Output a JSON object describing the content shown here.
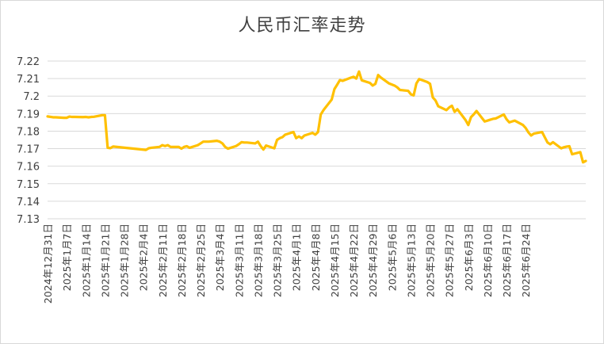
{
  "chart_data": {
    "type": "line",
    "title": "人民币汇率走势",
    "ylim": [
      7.13,
      7.22
    ],
    "yticks": [
      "7.22",
      "7.21",
      "7.2",
      "7.19",
      "7.18",
      "7.17",
      "7.16",
      "7.15",
      "7.14",
      "7.13"
    ],
    "ytick_values": [
      7.22,
      7.21,
      7.2,
      7.19,
      7.18,
      7.17,
      7.16,
      7.15,
      7.14,
      7.13
    ],
    "xticks": [
      "2024年12月31日",
      "2025年1月7日",
      "2025年1月14日",
      "2025年1月21日",
      "2025年1月28日",
      "2025年2月4日",
      "2025年2月11日",
      "2025年2月18日",
      "2025年2月25日",
      "2025年3月4日",
      "2025年3月11日",
      "2025年3月18日",
      "2025年3月25日",
      "2025年4月1日",
      "2025年4月8日",
      "2025年4月15日",
      "2025年4月22日",
      "2025年4月29日",
      "2025年5月6日",
      "2025年5月13日",
      "2025年5月20日",
      "2025年5月27日",
      "2025年6月3日",
      "2025年6月10日",
      "2025年6月17日",
      "2025年6月24日"
    ],
    "grid": true,
    "legend": "none",
    "line_color": "#ffc000",
    "series": [
      {
        "points": [
          [
            "2024-12-31",
            7.1884
          ],
          [
            "2025-01-02",
            7.1879
          ],
          [
            "2025-01-03",
            7.1879
          ],
          [
            "2025-01-06",
            7.1876
          ],
          [
            "2025-01-07",
            7.1876
          ],
          [
            "2025-01-08",
            7.1883
          ],
          [
            "2025-01-09",
            7.1881
          ],
          [
            "2025-01-10",
            7.1881
          ],
          [
            "2025-01-13",
            7.188
          ],
          [
            "2025-01-14",
            7.1881
          ],
          [
            "2025-01-15",
            7.1879
          ],
          [
            "2025-01-16",
            7.1881
          ],
          [
            "2025-01-17",
            7.1882
          ],
          [
            "2025-01-20",
            7.1891
          ],
          [
            "2025-01-21",
            7.1891
          ],
          [
            "2025-01-22",
            7.1705
          ],
          [
            "2025-01-23",
            7.1703
          ],
          [
            "2025-01-24",
            7.1712
          ],
          [
            "2025-02-05",
            7.1693
          ],
          [
            "2025-02-06",
            7.1702
          ],
          [
            "2025-02-07",
            7.1705
          ],
          [
            "2025-02-10",
            7.171
          ],
          [
            "2025-02-11",
            7.172
          ],
          [
            "2025-02-12",
            7.1715
          ],
          [
            "2025-02-13",
            7.172
          ],
          [
            "2025-02-14",
            7.171
          ],
          [
            "2025-02-17",
            7.171
          ],
          [
            "2025-02-18",
            7.17
          ],
          [
            "2025-02-19",
            7.171
          ],
          [
            "2025-02-20",
            7.1714
          ],
          [
            "2025-02-21",
            7.1705
          ],
          [
            "2025-02-24",
            7.172
          ],
          [
            "2025-02-25",
            7.173
          ],
          [
            "2025-02-26",
            7.174
          ],
          [
            "2025-02-27",
            7.174
          ],
          [
            "2025-02-28",
            7.174
          ],
          [
            "2025-03-03",
            7.1745
          ],
          [
            "2025-03-04",
            7.174
          ],
          [
            "2025-03-05",
            7.173
          ],
          [
            "2025-03-06",
            7.171
          ],
          [
            "2025-03-07",
            7.17
          ],
          [
            "2025-03-10",
            7.1715
          ],
          [
            "2025-03-11",
            7.1725
          ],
          [
            "2025-03-12",
            7.1737
          ],
          [
            "2025-03-13",
            7.1735
          ],
          [
            "2025-03-14",
            7.1735
          ],
          [
            "2025-03-17",
            7.173
          ],
          [
            "2025-03-18",
            7.174
          ],
          [
            "2025-03-19",
            7.1715
          ],
          [
            "2025-03-20",
            7.1695
          ],
          [
            "2025-03-21",
            7.1718
          ],
          [
            "2025-03-24",
            7.1702
          ],
          [
            "2025-03-25",
            7.175
          ],
          [
            "2025-03-26",
            7.176
          ],
          [
            "2025-03-27",
            7.1766
          ],
          [
            "2025-03-28",
            7.178
          ],
          [
            "2025-03-31",
            7.1795
          ],
          [
            "2025-04-01",
            7.176
          ],
          [
            "2025-04-02",
            7.177
          ],
          [
            "2025-04-03",
            7.176
          ],
          [
            "2025-04-04",
            7.1775
          ],
          [
            "2025-04-07",
            7.179
          ],
          [
            "2025-04-08",
            7.178
          ],
          [
            "2025-04-09",
            7.1795
          ],
          [
            "2025-04-10",
            7.1895
          ],
          [
            "2025-04-11",
            7.192
          ],
          [
            "2025-04-14",
            7.198
          ],
          [
            "2025-04-15",
            7.204
          ],
          [
            "2025-04-16",
            7.2065
          ],
          [
            "2025-04-17",
            7.2091
          ],
          [
            "2025-04-18",
            7.2087
          ],
          [
            "2025-04-21",
            7.2105
          ],
          [
            "2025-04-22",
            7.211
          ],
          [
            "2025-04-23",
            7.21
          ],
          [
            "2025-04-24",
            7.214
          ],
          [
            "2025-04-25",
            7.209
          ],
          [
            "2025-04-28",
            7.2075
          ],
          [
            "2025-04-29",
            7.206
          ],
          [
            "2025-04-30",
            7.207
          ],
          [
            "2025-05-01",
            7.212
          ],
          [
            "2025-05-02",
            7.2106
          ],
          [
            "2025-05-05",
            7.2072
          ],
          [
            "2025-05-06",
            7.2066
          ],
          [
            "2025-05-07",
            7.206
          ],
          [
            "2025-05-08",
            7.205
          ],
          [
            "2025-05-09",
            7.2035
          ],
          [
            "2025-05-12",
            7.203
          ],
          [
            "2025-05-13",
            7.201
          ],
          [
            "2025-05-14",
            7.2004
          ],
          [
            "2025-05-15",
            7.2072
          ],
          [
            "2025-05-16",
            7.2097
          ],
          [
            "2025-05-19",
            7.208
          ],
          [
            "2025-05-20",
            7.207
          ],
          [
            "2025-05-21",
            7.1993
          ],
          [
            "2025-05-22",
            7.1975
          ],
          [
            "2025-05-23",
            7.1942
          ],
          [
            "2025-05-26",
            7.192
          ],
          [
            "2025-05-27",
            7.1935
          ],
          [
            "2025-05-28",
            7.1945
          ],
          [
            "2025-05-29",
            7.191
          ],
          [
            "2025-05-30",
            7.1925
          ],
          [
            "2025-06-02",
            7.1863
          ],
          [
            "2025-06-03",
            7.1835
          ],
          [
            "2025-06-04",
            7.188
          ],
          [
            "2025-06-05",
            7.1896
          ],
          [
            "2025-06-06",
            7.1915
          ],
          [
            "2025-06-09",
            7.1855
          ],
          [
            "2025-06-10",
            7.186
          ],
          [
            "2025-06-11",
            7.1865
          ],
          [
            "2025-06-12",
            7.187
          ],
          [
            "2025-06-13",
            7.1872
          ],
          [
            "2025-06-16",
            7.1895
          ],
          [
            "2025-06-17",
            7.1868
          ],
          [
            "2025-06-18",
            7.185
          ],
          [
            "2025-06-19",
            7.1855
          ],
          [
            "2025-06-20",
            7.186
          ],
          [
            "2025-06-23",
            7.1835
          ],
          [
            "2025-06-24",
            7.1818
          ],
          [
            "2025-06-25",
            7.1793
          ],
          [
            "2025-06-26",
            7.1775
          ],
          [
            "2025-06-27",
            7.1786
          ],
          [
            "2025-06-30",
            7.1795
          ],
          [
            "2025-07-01",
            7.1765
          ],
          [
            "2025-07-02",
            7.1735
          ],
          [
            "2025-07-03",
            7.1725
          ],
          [
            "2025-07-04",
            7.1737
          ],
          [
            "2025-07-07",
            7.1702
          ],
          [
            "2025-07-08",
            7.1708
          ],
          [
            "2025-07-09",
            7.1712
          ],
          [
            "2025-07-10",
            7.1714
          ],
          [
            "2025-07-11",
            7.1668
          ],
          [
            "2025-07-14",
            7.168
          ],
          [
            "2025-07-15",
            7.1622
          ],
          [
            "2025-07-16",
            7.163
          ]
        ]
      }
    ]
  }
}
